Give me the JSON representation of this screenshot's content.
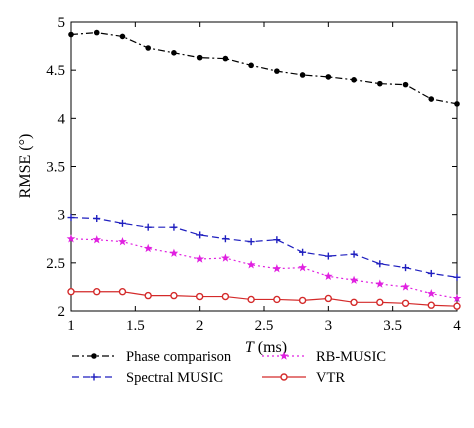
{
  "chart_data": {
    "type": "line",
    "xlabel": "T (ms)",
    "xlabel_var": "T",
    "xlabel_unit": " (ms)",
    "ylabel": "RMSE (°)",
    "xlim": [
      1,
      4
    ],
    "ylim": [
      2,
      5
    ],
    "xticks": [
      "1",
      "1.5",
      "2",
      "2.5",
      "3",
      "3.5",
      "4"
    ],
    "yticks": [
      "2",
      "2.5",
      "3",
      "3.5",
      "4",
      "4.5",
      "5"
    ],
    "grid": false,
    "legend_placement": "below",
    "x": [
      1.0,
      1.2,
      1.4,
      1.6,
      1.8,
      2.0,
      2.2,
      2.4,
      2.6,
      2.8,
      3.0,
      3.2,
      3.4,
      3.6,
      3.8,
      4.0
    ],
    "series": [
      {
        "name": "Phase comparison",
        "color": "#000000",
        "line": "dash-dot",
        "marker": "dot",
        "values": [
          4.87,
          4.89,
          4.85,
          4.73,
          4.68,
          4.63,
          4.62,
          4.55,
          4.49,
          4.45,
          4.43,
          4.4,
          4.36,
          4.35,
          4.2,
          4.15
        ]
      },
      {
        "name": "Spectral MUSIC",
        "color": "#1f1fbf",
        "line": "dashed",
        "marker": "plus",
        "values": [
          2.97,
          2.96,
          2.91,
          2.87,
          2.87,
          2.79,
          2.75,
          2.72,
          2.74,
          2.61,
          2.57,
          2.59,
          2.49,
          2.45,
          2.39,
          2.35
        ]
      },
      {
        "name": "RB-MUSIC",
        "color": "#e020e0",
        "line": "dotted",
        "marker": "star",
        "values": [
          2.75,
          2.74,
          2.72,
          2.65,
          2.6,
          2.54,
          2.55,
          2.48,
          2.44,
          2.45,
          2.36,
          2.32,
          2.28,
          2.25,
          2.18,
          2.13
        ]
      },
      {
        "name": "VTR",
        "color": "#d42a2a",
        "line": "solid",
        "marker": "circle",
        "values": [
          2.2,
          2.2,
          2.2,
          2.16,
          2.16,
          2.15,
          2.15,
          2.12,
          2.12,
          2.11,
          2.13,
          2.09,
          2.09,
          2.08,
          2.06,
          2.05
        ]
      }
    ]
  }
}
